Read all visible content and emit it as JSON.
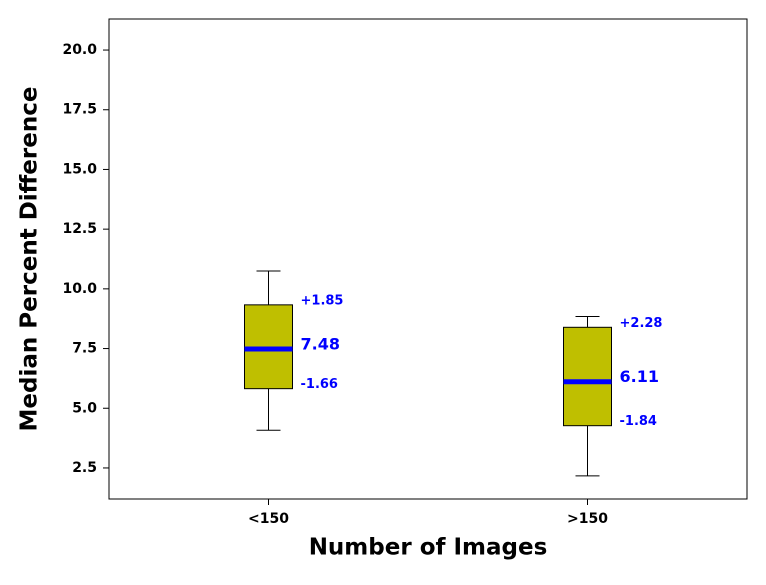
{
  "chart_data": {
    "type": "box",
    "xlabel": "Number of Images",
    "ylabel": "Median Percent Difference",
    "categories": [
      "<150",
      ">150"
    ],
    "boxes": [
      {
        "min": 4.08,
        "q1": 5.82,
        "median": 7.48,
        "q3": 9.33,
        "max": 10.75
      },
      {
        "min": 2.17,
        "q1": 4.27,
        "median": 6.11,
        "q3": 8.39,
        "max": 8.84
      }
    ],
    "annotations": [
      {
        "plus": {
          "value": 1.85,
          "label": "+1.85"
        },
        "minus": -1.66
      },
      {
        "plus": {
          "value": 2.28,
          "label": "+2.28"
        },
        "minus": -1.84
      }
    ],
    "box_color": "#bfbf00",
    "median_color": "#0000ff",
    "label_color": "#0000ff",
    "ylim": [
      1.2,
      21.3
    ],
    "yticks": [
      {
        "value": 2.5,
        "label": "2.5"
      },
      {
        "value": 5,
        "label": "5.0"
      },
      {
        "value": 7.5,
        "label": "7.5"
      },
      {
        "value": 10,
        "label": "10.0"
      },
      {
        "value": 12.5,
        "label": "12.5"
      },
      {
        "value": 15,
        "label": "15.0"
      },
      {
        "value": 17.5,
        "label": "17.5"
      },
      {
        "value": 20,
        "label": "20.0"
      }
    ]
  }
}
